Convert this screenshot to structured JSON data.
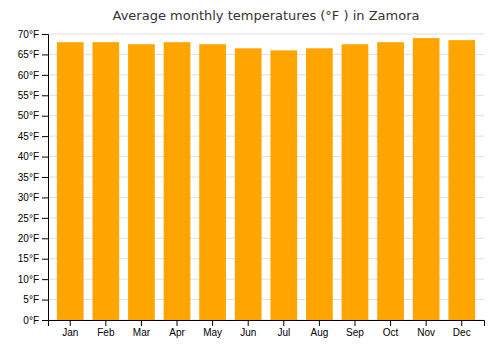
{
  "chart_data": {
    "type": "bar",
    "title": "Average monthly temperatures (°F ) in Zamora",
    "categories": [
      "Jan",
      "Feb",
      "Mar",
      "Apr",
      "May",
      "Jun",
      "Jul",
      "Aug",
      "Sep",
      "Oct",
      "Nov",
      "Dec"
    ],
    "values": [
      68.0,
      68.0,
      67.5,
      68.0,
      67.5,
      66.5,
      66.0,
      66.5,
      67.5,
      68.0,
      69.0,
      68.5
    ],
    "color": "#FFA500",
    "ylim": [
      0,
      70
    ],
    "yticks": [
      {
        "value": 0,
        "label": "0°F"
      },
      {
        "value": 5,
        "label": "5°F"
      },
      {
        "value": 10,
        "label": "10°F"
      },
      {
        "value": 15,
        "label": "15°F"
      },
      {
        "value": 20,
        "label": "20°F"
      },
      {
        "value": 25,
        "label": "25°F"
      },
      {
        "value": 30,
        "label": "30°F"
      },
      {
        "value": 35,
        "label": "35°F"
      },
      {
        "value": 40,
        "label": "40°F"
      },
      {
        "value": 45,
        "label": "45°F"
      },
      {
        "value": 50,
        "label": "50°F"
      },
      {
        "value": 55,
        "label": "55°F"
      },
      {
        "value": 60,
        "label": "60°F"
      },
      {
        "value": 65,
        "label": "65°F"
      },
      {
        "value": 70,
        "label": "70°F"
      }
    ],
    "grid": true
  }
}
